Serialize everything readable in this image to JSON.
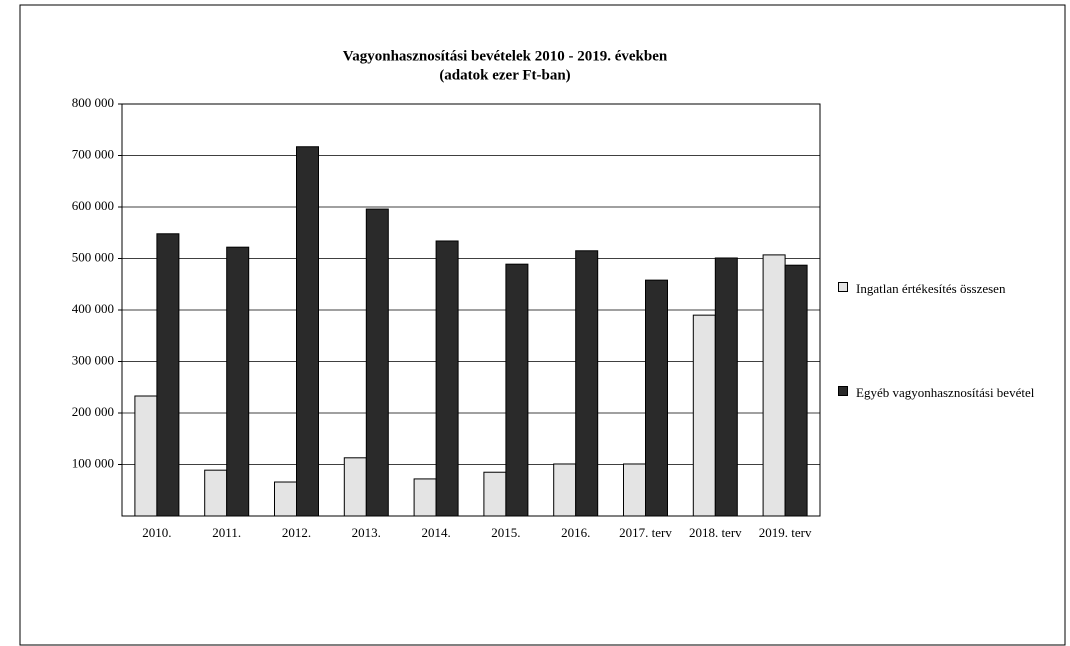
{
  "chart_data": {
    "type": "bar",
    "title": "Vagyonhasznosítási bevételek 2010 - 2019. években",
    "subtitle": "(adatok ezer Ft-ban)",
    "categories": [
      "2010.",
      "2011.",
      "2012.",
      "2013.",
      "2014.",
      "2015.",
      "2016.",
      "2017. terv",
      "2018. terv",
      "2019. terv"
    ],
    "series": [
      {
        "name": "Ingatlan értékesítés összesen",
        "color": "#e4e4e4",
        "values": [
          233000,
          89000,
          66000,
          113000,
          72000,
          85000,
          101000,
          101000,
          390000,
          507000
        ]
      },
      {
        "name": "Egyéb vagyonhasznosítási bevétel",
        "color": "#2a2a2a",
        "values": [
          548000,
          522000,
          717000,
          596000,
          534000,
          489000,
          515000,
          458000,
          501000,
          487000
        ]
      }
    ],
    "ylim": [
      0,
      800000
    ],
    "yticks": [
      {
        "value": 100000,
        "label": "100 000"
      },
      {
        "value": 200000,
        "label": "200 000"
      },
      {
        "value": 300000,
        "label": "300 000"
      },
      {
        "value": 400000,
        "label": "400 000"
      },
      {
        "value": 500000,
        "label": "500 000"
      },
      {
        "value": 600000,
        "label": "600 000"
      },
      {
        "value": 700000,
        "label": "700 000"
      },
      {
        "value": 800000,
        "label": "800 000"
      }
    ],
    "grid": true,
    "legend": "right"
  }
}
